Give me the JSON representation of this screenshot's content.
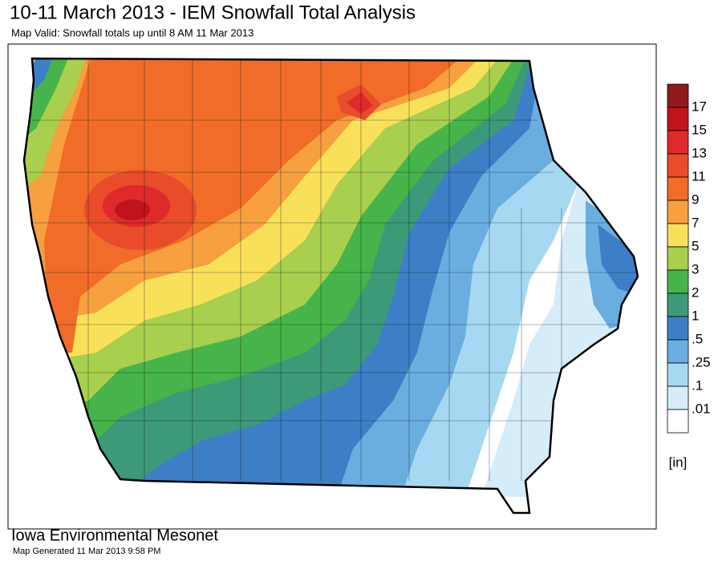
{
  "header": {
    "title": "10-11 March 2013 - IEM Snowfall Total Analysis",
    "subtitle": "Map Valid: Snowfall totals up until 8 AM 11 Mar 2013"
  },
  "legend": {
    "labels": [
      "17",
      "15",
      "13",
      "11",
      "9",
      "7",
      "5",
      "3",
      "2",
      "1",
      ".5",
      ".25",
      ".1",
      ".01"
    ],
    "colors": [
      "#8e1b1b",
      "#c0141c",
      "#de2a2a",
      "#e84c2a",
      "#f06c28",
      "#f6a040",
      "#f8e15a",
      "#a8cf4e",
      "#46b44a",
      "#3c9a78",
      "#3d7fc6",
      "#6aaee0",
      "#a6d8f2",
      "#d6ecf8",
      "#ffffff"
    ],
    "unit": "[in]"
  },
  "footer": {
    "organization": "Iowa Environmental Mesonet",
    "generated": "Map Generated 11 Mar 2013 9:58 PM"
  }
}
